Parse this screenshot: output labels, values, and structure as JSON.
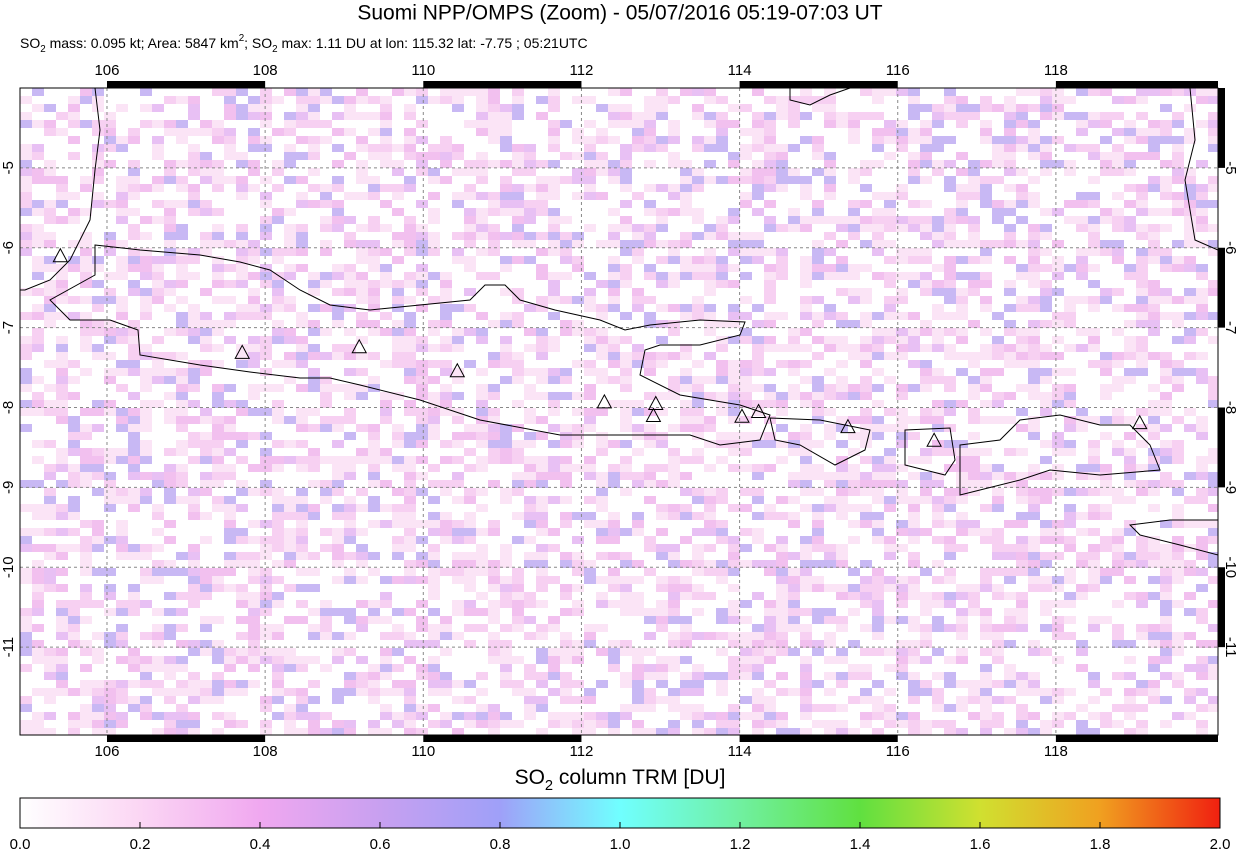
{
  "header": {
    "title": "Suomi NPP/OMPS (Zoom) - 05/07/2016 05:19-07:03 UT",
    "subtitle": [
      {
        "text": "SO"
      },
      {
        "sub": "2"
      },
      {
        "text": " mass: 0.095 kt; Area: 5847 km"
      },
      {
        "sup": "2"
      },
      {
        "text": "; SO"
      },
      {
        "sub": "2"
      },
      {
        "text": " max: 1.11 DU at lon: 115.32 lat: -7.75 ; 05:21UTC"
      }
    ]
  },
  "map": {
    "xlim": [
      104.9,
      120.05
    ],
    "ylim": [
      -12.1,
      -4.0
    ],
    "xticks": [
      106,
      108,
      110,
      112,
      114,
      116,
      118
    ],
    "yticks": [
      -5,
      -6,
      -7,
      -8,
      -9,
      -10,
      -11
    ],
    "grid": true,
    "volcanoes": [
      {
        "lon": 105.41,
        "lat": -6.1
      },
      {
        "lon": 107.71,
        "lat": -7.31
      },
      {
        "lon": 109.19,
        "lat": -7.24
      },
      {
        "lon": 110.43,
        "lat": -7.54
      },
      {
        "lon": 112.29,
        "lat": -7.93
      },
      {
        "lon": 112.94,
        "lat": -7.95
      },
      {
        "lon": 112.91,
        "lat": -8.1
      },
      {
        "lon": 114.03,
        "lat": -8.11
      },
      {
        "lon": 114.24,
        "lat": -8.05
      },
      {
        "lon": 115.37,
        "lat": -8.24
      },
      {
        "lon": 116.46,
        "lat": -8.41
      },
      {
        "lon": 119.06,
        "lat": -8.19
      }
    ]
  },
  "colorbar": {
    "label": [
      {
        "text": "SO"
      },
      {
        "sub": "2"
      },
      {
        "text": " column TRM [DU]"
      }
    ],
    "lim": [
      0,
      2
    ],
    "ticks": [
      {
        "value": 0,
        "label": "0.0"
      },
      0.2,
      0.4,
      0.6,
      0.8,
      {
        "value": 1,
        "label": "1.0"
      },
      1.2,
      1.4,
      1.6,
      1.8,
      {
        "value": 2,
        "label": "2.0"
      }
    ]
  }
}
